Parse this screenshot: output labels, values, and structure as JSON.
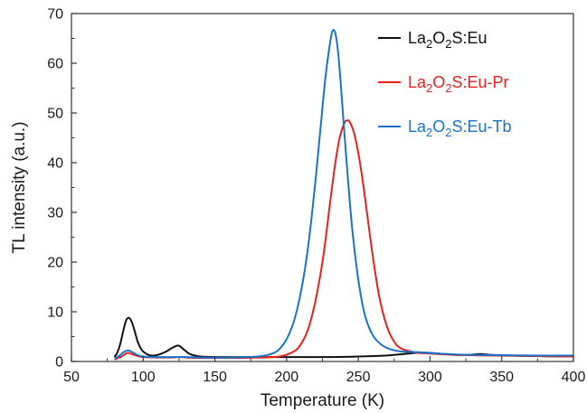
{
  "chart_data": {
    "type": "line",
    "title": "",
    "xlabel": "Temperature (K)",
    "ylabel": "TL intensity (a.u.)",
    "xlim": [
      50,
      400
    ],
    "ylim": [
      0,
      70
    ],
    "xticks": [
      50,
      100,
      150,
      200,
      250,
      300,
      350,
      400
    ],
    "yticks": [
      0,
      10,
      20,
      30,
      40,
      50,
      60,
      70
    ],
    "xtick_labels": [
      "50",
      "100",
      "150",
      "200",
      "250",
      "300",
      "350",
      "400"
    ],
    "ytick_labels": [
      "0",
      "10",
      "20",
      "30",
      "40",
      "50",
      "60",
      "70"
    ],
    "grid": false,
    "legend": {
      "placement": "top-right",
      "entries": [
        {
          "base": "La",
          "s1": "2",
          "mid": "O",
          "s2": "2",
          "suffix": "S:Eu"
        },
        {
          "base": "La",
          "s1": "2",
          "mid": "O",
          "s2": "2",
          "suffix": "S:Eu-Pr"
        },
        {
          "base": "La",
          "s1": "2",
          "mid": "O",
          "s2": "2",
          "suffix": "S:Eu-Tb"
        }
      ]
    },
    "series": [
      {
        "name": "La2O2S:Eu",
        "color": "#111111",
        "x": [
          80,
          82,
          84,
          86,
          88,
          90,
          92,
          94,
          96,
          98,
          100,
          104,
          108,
          112,
          116,
          120,
          124,
          126,
          128,
          132,
          136,
          140,
          150,
          170,
          200,
          230,
          250,
          270,
          285,
          295,
          310,
          325,
          335,
          345,
          370,
          400
        ],
        "y": [
          0.9,
          1.8,
          3.5,
          6.0,
          8.2,
          8.8,
          8.0,
          6.2,
          4.2,
          2.8,
          2.0,
          1.3,
          1.2,
          1.5,
          2.0,
          2.7,
          3.2,
          3.0,
          2.5,
          1.6,
          1.2,
          1.0,
          0.9,
          0.9,
          0.9,
          0.9,
          1.0,
          1.2,
          1.6,
          1.8,
          1.5,
          1.3,
          1.5,
          1.3,
          1.1,
          1.0
        ]
      },
      {
        "name": "La2O2S:Eu-Pr",
        "color": "#e8201e",
        "x": [
          80,
          85,
          88,
          90,
          93,
          96,
          100,
          110,
          120,
          125,
          130,
          140,
          160,
          180,
          195,
          205,
          210,
          215,
          220,
          225,
          228,
          231,
          234,
          237,
          240,
          242,
          244,
          247,
          250,
          253,
          256,
          259,
          262,
          265,
          270,
          275,
          280,
          290,
          300,
          320,
          340,
          370,
          400
        ],
        "y": [
          0.4,
          1.0,
          1.6,
          1.7,
          1.4,
          1.1,
          0.9,
          0.8,
          0.8,
          0.9,
          0.8,
          0.7,
          0.7,
          0.8,
          1.0,
          2.0,
          3.5,
          6.5,
          12.0,
          20.0,
          26.5,
          33.5,
          40.0,
          45.0,
          47.8,
          48.5,
          48.2,
          46.0,
          42.0,
          36.5,
          30.0,
          23.5,
          17.5,
          12.5,
          7.0,
          4.0,
          2.6,
          1.8,
          1.6,
          1.3,
          1.2,
          1.1,
          1.0
        ]
      },
      {
        "name": "La2O2S:Eu-Tb",
        "color": "#1a73c8",
        "x": [
          80,
          84,
          87,
          90,
          93,
          96,
          100,
          110,
          120,
          130,
          140,
          160,
          180,
          190,
          195,
          200,
          205,
          210,
          215,
          220,
          224,
          227,
          230,
          232,
          234,
          236,
          238,
          240,
          243,
          246,
          250,
          254,
          258,
          262,
          267,
          272,
          280,
          290,
          300,
          320,
          340,
          370,
          400
        ],
        "y": [
          0.5,
          1.3,
          2.0,
          2.2,
          1.8,
          1.3,
          1.0,
          0.9,
          0.9,
          0.9,
          0.8,
          0.8,
          1.0,
          1.6,
          2.5,
          4.5,
          8.0,
          14.0,
          23.0,
          36.0,
          48.0,
          57.0,
          63.5,
          66.5,
          66.0,
          62.0,
          55.0,
          47.0,
          36.0,
          26.0,
          16.5,
          10.0,
          6.5,
          4.5,
          3.2,
          2.5,
          2.0,
          1.9,
          1.7,
          1.4,
          1.3,
          1.2,
          1.2
        ]
      }
    ]
  }
}
